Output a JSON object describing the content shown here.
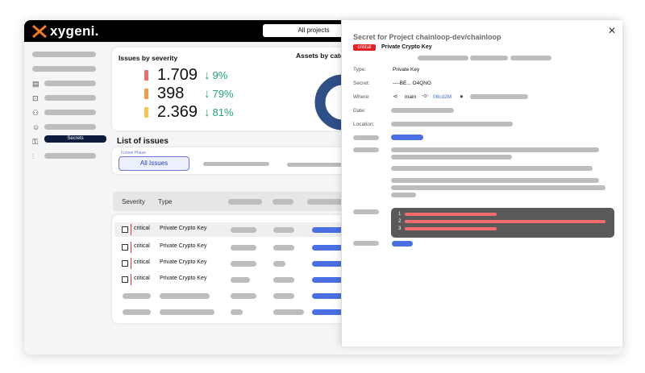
{
  "app": {
    "logo_text": "xygeni.",
    "project_selector": "All projects"
  },
  "sidebar": {
    "active_label": "Secrets",
    "icons": [
      "server-icon",
      "scan-icon",
      "flow-icon",
      "spy-icon",
      "secrets-icon",
      "settings-sliders-icon"
    ]
  },
  "severity_card": {
    "title": "Issues by severity",
    "rows": [
      {
        "value": "1.709",
        "pct": "9%",
        "color": "#f26b6b"
      },
      {
        "value": "398",
        "pct": "79%",
        "color": "#f39a4a"
      },
      {
        "value": "2.369",
        "pct": "81%",
        "color": "#f7c24d"
      }
    ],
    "assets_title": "Assets by cate"
  },
  "issues": {
    "title": "List of issues",
    "funnel_label": "Funnel Phase",
    "tab_label": "All Issues",
    "columns": {
      "severity": "Severity",
      "type": "Type"
    },
    "rows": [
      {
        "severity": "critical",
        "type": "Private Crypto Key"
      },
      {
        "severity": "critical",
        "type": "Private Crypto Key"
      },
      {
        "severity": "critical",
        "type": "Private Crypto Key"
      },
      {
        "severity": "critical",
        "type": "Private Crypto Key"
      }
    ],
    "accent": "#4a6fe3"
  },
  "detail": {
    "title": "Secret for Project chainloop-dev/chainloop",
    "badge": "critical",
    "subtitle": "Private Crypto Key",
    "fields": {
      "type_label": "Type:",
      "type_value": "Private Key",
      "secret_label": "Secret:",
      "secret_value": "----BE... O4QNG",
      "where_label": "Where:",
      "where_branch": "main",
      "where_commit": "08cd2M",
      "date_label": "Date:",
      "location_label": "Location:"
    },
    "code_lines": [
      "1",
      "2",
      "3"
    ],
    "close_icon": "close-icon"
  }
}
